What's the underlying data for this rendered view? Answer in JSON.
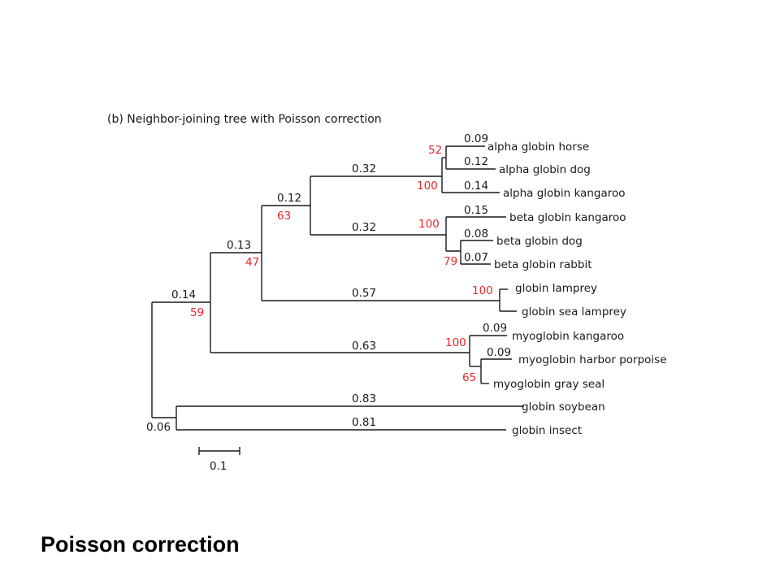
{
  "figure_title": "(b) Neighbor-joining tree with Poisson correction",
  "caption": "Poisson correction",
  "scale_bar": {
    "label": "0.1"
  },
  "colors": {
    "bootstrap": "#e8262b",
    "line": "#1a1a1a"
  },
  "leaves": [
    "alpha globin horse",
    "alpha globin dog",
    "alpha globin kangaroo",
    "beta globin kangaroo",
    "beta globin dog",
    "beta globin rabbit",
    "globin lamprey",
    "globin sea lamprey",
    "myoglobin kangaroo",
    "myoglobin harbor porpoise",
    "myoglobin gray seal",
    "globin soybean",
    "globin insect"
  ],
  "branch_lengths": [
    "0.09",
    "0.12",
    "0.14",
    "0.15",
    "0.08",
    "0.07",
    "0.32",
    "0.32",
    "0.12",
    "0.13",
    "0.14",
    "0.57",
    "0.63",
    "0.09",
    "0.09",
    "0.83",
    "0.81",
    "0.06"
  ],
  "bootstrap_values": [
    "52",
    "100",
    "100",
    "79",
    "63",
    "47",
    "59",
    "100",
    "100",
    "65"
  ]
}
